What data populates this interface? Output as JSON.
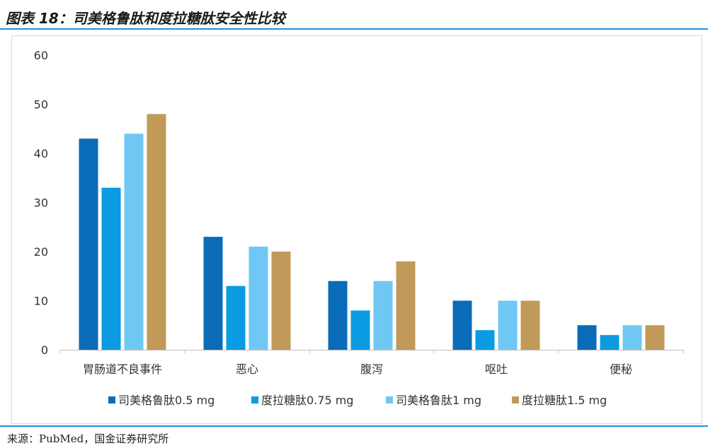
{
  "title": "图表 18：司美格鲁肽和度拉糖肽安全性比较",
  "source": "来源：PubMed，国金证券研究所",
  "chart_data": {
    "type": "bar",
    "categories": [
      "胃肠道不良事件",
      "恶心",
      "腹泻",
      "呕吐",
      "便秘"
    ],
    "series": [
      {
        "name": "司美格鲁肽0.5 mg",
        "color": "#0a6cb8",
        "values": [
          43,
          23,
          14,
          10,
          5
        ]
      },
      {
        "name": "度拉糖肽0.75 mg",
        "color": "#0b9be3",
        "values": [
          33,
          13,
          8,
          4,
          3
        ]
      },
      {
        "name": "司美格鲁肽1 mg",
        "color": "#6fc8f3",
        "values": [
          44,
          21,
          14,
          10,
          5
        ]
      },
      {
        "name": "度拉糖肽1.5 mg",
        "color": "#c19a59",
        "values": [
          48,
          20,
          18,
          10,
          5
        ]
      }
    ],
    "ylim": [
      0,
      60
    ],
    "yticks": [
      0,
      10,
      20,
      30,
      40,
      50,
      60
    ],
    "grid": false,
    "legend": "bottom"
  }
}
